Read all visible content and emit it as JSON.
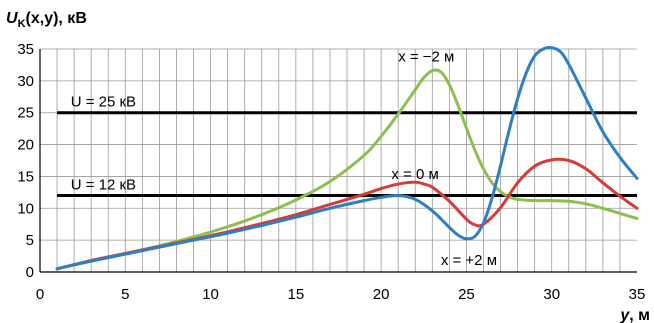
{
  "chart_data": {
    "type": "line",
    "ylabel_var": "U",
    "ylabel_sub": "K",
    "ylabel_rest": "(x,y), кВ",
    "xlabel_var": "y",
    "xlabel_rest": ", м",
    "xlim": [
      0,
      35
    ],
    "ylim": [
      0,
      35
    ],
    "xticks": [
      0,
      5,
      10,
      15,
      20,
      25,
      30,
      35
    ],
    "yticks": [
      0,
      5,
      10,
      15,
      20,
      25,
      30,
      35
    ],
    "grid": true,
    "series": [
      {
        "name": "x = −2 м",
        "color": "#8cbf4e",
        "x": [
          1,
          3,
          5,
          7,
          9,
          11,
          13,
          15,
          17,
          19,
          20,
          21,
          22,
          22.5,
          23,
          23.5,
          24,
          24.5,
          25,
          25.5,
          26,
          26.5,
          27,
          27.5,
          28,
          29,
          30,
          31,
          32,
          33,
          34,
          35
        ],
        "y": [
          0.5,
          1.8,
          2.9,
          4.1,
          5.5,
          7.1,
          9.0,
          11.3,
          14.2,
          18.3,
          21.3,
          24.8,
          28.6,
          30.5,
          31.6,
          31.4,
          29.4,
          26.2,
          22.6,
          19.1,
          16.2,
          14.0,
          12.6,
          11.8,
          11.4,
          11.2,
          11.2,
          11.1,
          10.7,
          10.0,
          9.2,
          8.4
        ]
      },
      {
        "name": "x = 0 м",
        "color": "#d83a3a",
        "x": [
          1,
          3,
          5,
          7,
          9,
          11,
          13,
          15,
          17,
          19,
          20,
          21,
          22,
          22.5,
          23,
          24,
          25,
          25.5,
          26,
          27,
          28,
          29,
          30,
          31,
          32,
          33,
          34,
          35
        ],
        "y": [
          0.5,
          1.8,
          2.9,
          4.0,
          5.1,
          6.3,
          7.6,
          9.0,
          10.6,
          12.2,
          13.1,
          13.8,
          14.1,
          13.8,
          13.3,
          11.1,
          8.3,
          7.4,
          7.5,
          10.1,
          14.0,
          16.6,
          17.6,
          17.5,
          16.2,
          14.0,
          11.9,
          10.0
        ]
      },
      {
        "name": "x = +2 м",
        "color": "#2e7fc1",
        "x": [
          1,
          3,
          5,
          7,
          9,
          11,
          13,
          15,
          17,
          19,
          20,
          21,
          22,
          23,
          24,
          24.5,
          25,
          25.5,
          26,
          26.5,
          27,
          27.5,
          28,
          28.5,
          29,
          29.5,
          30,
          30.5,
          31,
          32,
          33,
          34,
          35
        ],
        "y": [
          0.5,
          1.7,
          2.8,
          3.9,
          5.0,
          6.1,
          7.3,
          8.6,
          10.0,
          11.2,
          11.7,
          12.0,
          11.4,
          9.6,
          7.0,
          5.8,
          5.2,
          5.6,
          7.7,
          11.6,
          16.7,
          22.2,
          27.2,
          31.2,
          33.9,
          35.0,
          35.2,
          34.6,
          32.6,
          27.3,
          22.0,
          18.0,
          14.7
        ]
      }
    ],
    "reference_lines": [
      {
        "value": 25,
        "label": "U = 25 кВ",
        "color": "#000000"
      },
      {
        "value": 12,
        "label": "U = 12 кВ",
        "color": "#000000"
      }
    ]
  }
}
